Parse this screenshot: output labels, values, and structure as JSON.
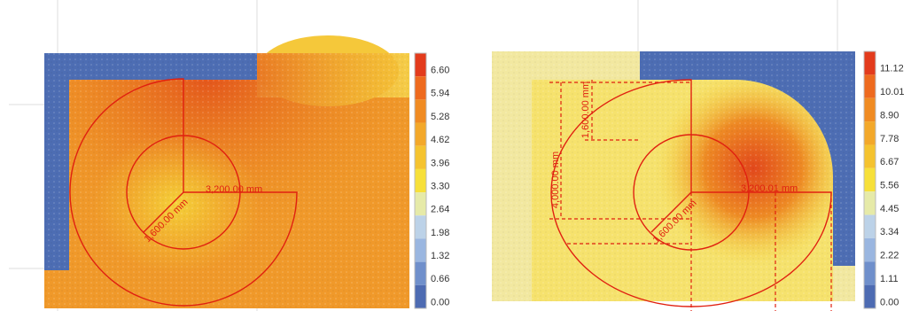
{
  "panels": [
    {
      "colorbar": [
        "6.60",
        "5.94",
        "5.28",
        "4.62",
        "3.96",
        "3.30",
        "2.64",
        "1.98",
        "1.32",
        "0.66",
        "0.00"
      ],
      "annotations": [
        "3,200.00 mm",
        "1,600.00 mm"
      ]
    },
    {
      "colorbar": [
        "11.12",
        "10.01",
        "8.90",
        "7.78",
        "6.67",
        "5.56",
        "4.45",
        "3.34",
        "2.22",
        "1.11",
        "0.00"
      ],
      "annotations": [
        "4,000.00 mm",
        "1,600.00 mm",
        "3,200.01 mm",
        "1,600.00 mm"
      ]
    }
  ]
}
